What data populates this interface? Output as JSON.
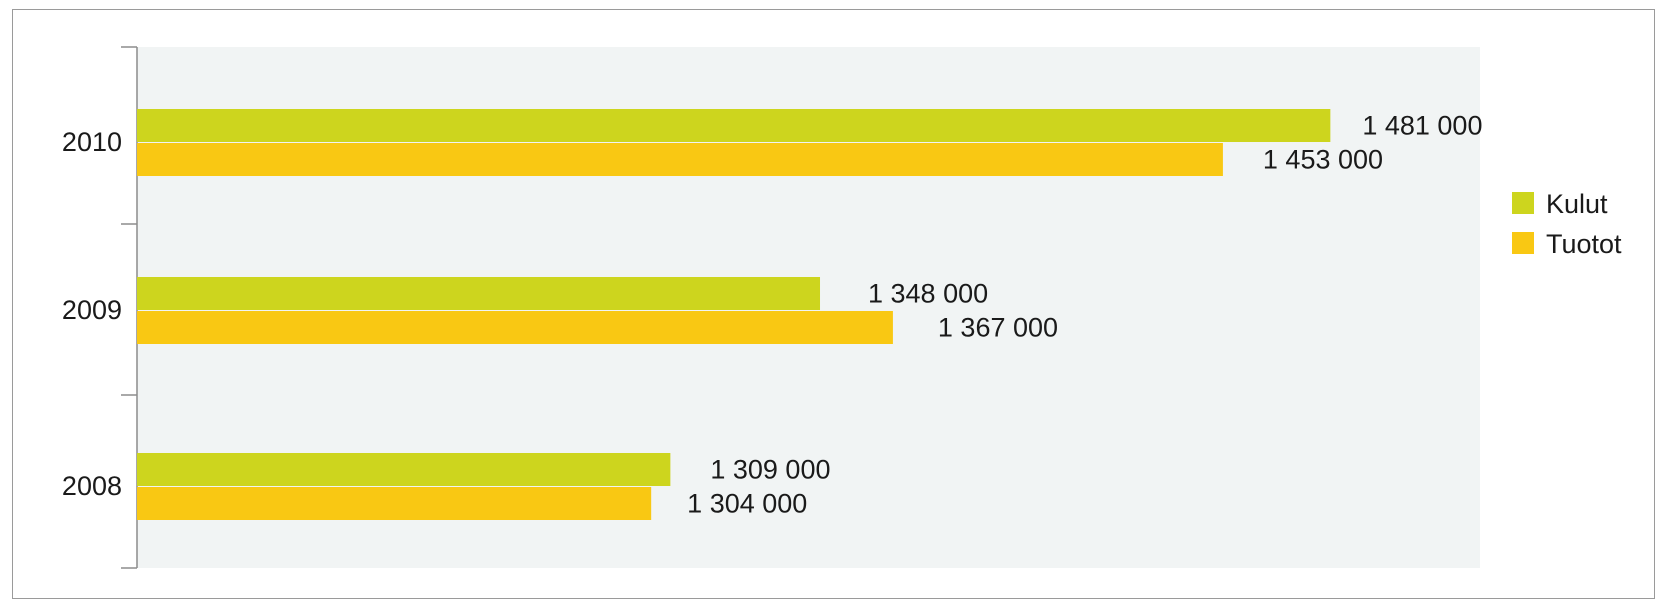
{
  "chart_data": {
    "type": "bar",
    "orientation": "horizontal",
    "categories": [
      "2010",
      "2009",
      "2008"
    ],
    "series": [
      {
        "name": "Kulut",
        "color": "#cdd51e",
        "values": [
          1481000,
          1348000,
          1309000
        ],
        "labels": [
          "1 481 000",
          "1 348 000",
          "1 309 000"
        ]
      },
      {
        "name": "Tuotot",
        "color": "#f9c813",
        "values": [
          1453000,
          1367000,
          1304000
        ],
        "labels": [
          "1 453 000",
          "1 367 000",
          "1 304 000"
        ]
      }
    ],
    "xlim": [
      1170000,
      1520000
    ],
    "grid": false,
    "legend": "right",
    "plot_background": "#f1f4f4"
  }
}
